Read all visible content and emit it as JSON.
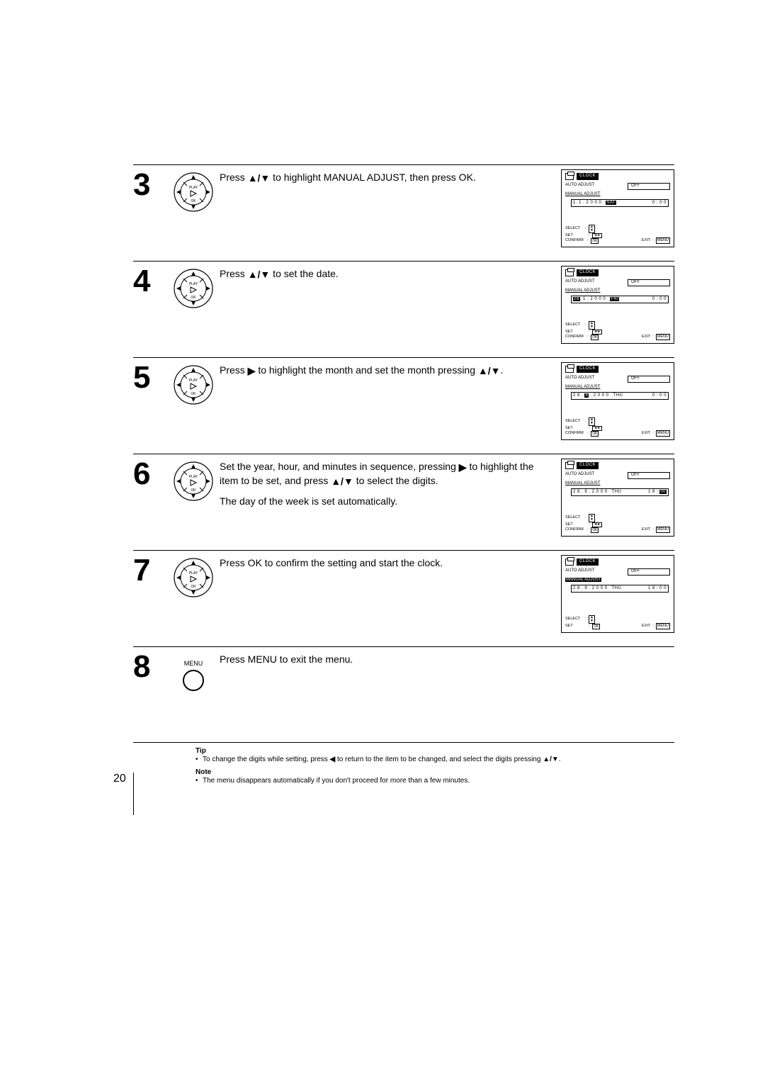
{
  "page_number": "20",
  "steps": [
    {
      "num": "3",
      "text_parts": [
        "Press ",
        "↑/↓",
        " to highlight MANUAL ADJUST, then press OK."
      ],
      "screen": {
        "date": "1.  1 . 2 0 0 0",
        "day": "SAT",
        "time": "0 : 0 0",
        "hi_day": true,
        "hi_manual": false,
        "footer_full": true
      }
    },
    {
      "num": "4",
      "text_parts": [
        "Press ",
        "↑/↓",
        " to set the date."
      ],
      "screen": {
        "date": "28.  1 . 2 0 0 0",
        "day": "FRI",
        "time": "0 : 0 0",
        "hi_date": true,
        "hi_day": true,
        "footer_full": true
      }
    },
    {
      "num": "5",
      "text_parts": [
        "Press ",
        "→",
        " to highlight the month and set the month pressing ",
        "↑/↓",
        "."
      ],
      "screen": {
        "date": "2 8 .  9 . 2 0 0 0",
        "day": "THU",
        "time": "0 : 0 0",
        "hi_month": true,
        "footer_full": true
      }
    },
    {
      "num": "6",
      "text_parts": [
        "Set the year, hour, and minutes in sequence, pressing ",
        "→",
        " to highlight the item to be set, and press ",
        "↑/↓",
        " to select the digits."
      ],
      "text2": "The day of the week is set automatically.",
      "screen": {
        "date": "2 8 .  9 . 2 0 0 0",
        "day": "THU",
        "time": "1 8 : 00",
        "hi_min": true,
        "footer_full": true
      }
    },
    {
      "num": "7",
      "text_parts": [
        "Press OK to confirm the setting and start the clock."
      ],
      "screen": {
        "date": "2 8 .  9 . 2 0 0 0",
        "day": "THU",
        "time": "1 8 : 0 0",
        "hi_manual": true,
        "footer_full": false
      }
    },
    {
      "num": "8",
      "text_parts": [
        "Press MENU to exit the menu."
      ],
      "icon": "menu"
    }
  ],
  "screen_labels": {
    "title": "CLOCK",
    "auto_adjust": "AUTO ADJUST",
    "off": "OFF",
    "manual_adjust": "MANUAL ADJUST",
    "select": "SELECT",
    "set": "SET",
    "confirm": "CONFIRM",
    "exit": "EXIT",
    "menu": "MENU",
    "ok": "OK"
  },
  "menu_button_label": "MENU",
  "tip": {
    "label": "Tip",
    "text_parts": [
      "To change the digits while setting, press ",
      "←",
      " to return to the item to be changed, and select the digits pressing ",
      "↑/↓",
      "."
    ]
  },
  "note": {
    "label": "Note",
    "text": "The menu disappears automatically if you don't proceed for more than a few minutes."
  }
}
